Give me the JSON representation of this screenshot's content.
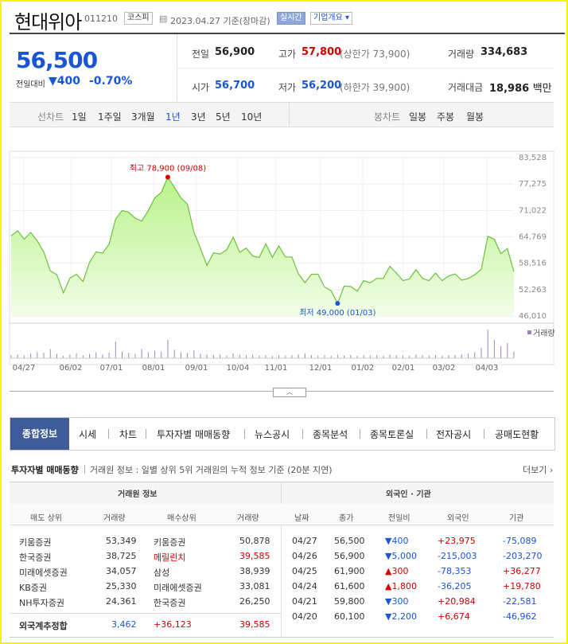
{
  "header": {
    "name": "현대위아",
    "code": "011210",
    "market_tag": "코스피",
    "date_text": "2023.04.27 기준(장마감)",
    "realtime_tag": "실시간",
    "company_btn": "기업개요 ▾"
  },
  "quote": {
    "price": "56,500",
    "change_label": "전일대비",
    "change_amount": "400",
    "change_pct": "-0.70%",
    "prev_label": "전일",
    "prev_val": "56,900",
    "high_label": "고가",
    "high_val": "57,800",
    "upper_label": "(상한가 73,900)",
    "volume_label": "거래량",
    "volume_val": "334,683",
    "open_label": "시가",
    "open_val": "56,700",
    "low_label": "저가",
    "low_val": "56,200",
    "lower_label": "(하한가 39,900)",
    "amount_label": "거래대금",
    "amount_val": "18,986",
    "amount_unit": "백만"
  },
  "chart_tabs": {
    "line_label": "선차트",
    "periods": [
      "1일",
      "1주일",
      "3개월",
      "1년",
      "3년",
      "5년",
      "10년"
    ],
    "candle_label": "봉차트",
    "candles": [
      "일봉",
      "주봉",
      "월봉"
    ]
  },
  "chart_data": {
    "type": "area",
    "ytick_labels": [
      "83,528",
      "77,275",
      "71,022",
      "64,769",
      "58,516",
      "52,263",
      "46,010"
    ],
    "ylim": [
      46010,
      83528
    ],
    "xtick_labels": [
      "04/27",
      "06/02",
      "07/01",
      "08/01",
      "09/01",
      "10/04",
      "11/01",
      "12/01",
      "01/02",
      "02/01",
      "03/02",
      "04/03"
    ],
    "high_label": "최고 78,900 (09/08)",
    "low_label": "최저 49,000 (01/03)",
    "volume_label": "거래량",
    "series": [
      65000,
      66200,
      64200,
      65800,
      63800,
      61200,
      56700,
      55800,
      51500,
      55000,
      55900,
      54200,
      58700,
      61200,
      60900,
      63000,
      69000,
      71000,
      70600,
      69200,
      68500,
      71000,
      74000,
      75300,
      78900,
      76500,
      74000,
      72500,
      65900,
      62000,
      58000,
      61000,
      60700,
      61700,
      64700,
      61100,
      62100,
      60200,
      59900,
      63100,
      59900,
      62600,
      60000,
      60000,
      56000,
      53900,
      55900,
      55900,
      52900,
      52000,
      49000,
      53100,
      53000,
      51900,
      54400,
      53900,
      54900,
      54900,
      57800,
      56200,
      54400,
      54800,
      57000,
      54900,
      54400,
      56200,
      54400,
      55500,
      56000,
      54500,
      54900,
      55800,
      57100,
      64900,
      64200,
      60800,
      62000,
      56500
    ],
    "volume": [
      0.1,
      0.12,
      0.09,
      0.15,
      0.2,
      0.18,
      0.3,
      0.14,
      0.08,
      0.12,
      0.16,
      0.1,
      0.14,
      0.2,
      0.12,
      0.18,
      0.55,
      0.22,
      0.18,
      0.14,
      0.3,
      0.2,
      0.25,
      0.22,
      0.6,
      0.28,
      0.2,
      0.18,
      0.26,
      0.14,
      0.12,
      0.1,
      0.12,
      0.09,
      0.16,
      0.12,
      0.1,
      0.12,
      0.09,
      0.1,
      0.08,
      0.1,
      0.09,
      0.1,
      0.12,
      0.15,
      0.1,
      0.09,
      0.1,
      0.08,
      0.12,
      0.09,
      0.1,
      0.08,
      0.1,
      0.09,
      0.1,
      0.08,
      0.12,
      0.1,
      0.09,
      0.08,
      0.12,
      0.1,
      0.09,
      0.1,
      0.08,
      0.09,
      0.1,
      0.12,
      0.15,
      0.2,
      0.35,
      0.95,
      0.6,
      0.4,
      0.5,
      0.22
    ]
  },
  "main_tabs": [
    "종합정보",
    "시세",
    "차트",
    "투자자별 매매동향",
    "뉴스공시",
    "종목분석",
    "종목토론실",
    "전자공시",
    "공매도현황"
  ],
  "investor": {
    "title": "투자자별 매매동향",
    "subtitle": "거래원 정보 : 일별 상위 5위 거래원의 누적 정보 기준 (20분 지연)",
    "more": "더보기 ›",
    "broker_header": "거래원 정보",
    "foreign_header": "외국인 · 기관",
    "broker_cols": [
      "매도 상위",
      "거래량",
      "매수상위",
      "거래량"
    ],
    "foreign_cols": [
      "날짜",
      "종가",
      "전일비",
      "외국인",
      "기관"
    ],
    "brokers": [
      {
        "sell": "키움증권",
        "sell_vol": "53,349",
        "buy": "키움증권",
        "buy_vol": "50,878",
        "buy_red": false
      },
      {
        "sell": "한국증권",
        "sell_vol": "38,725",
        "buy": "메릴린치",
        "buy_vol": "39,585",
        "buy_red": true
      },
      {
        "sell": "미래에셋증권",
        "sell_vol": "34,057",
        "buy": "삼성",
        "buy_vol": "38,939",
        "buy_red": false
      },
      {
        "sell": "KB증권",
        "sell_vol": "25,330",
        "buy": "미래에셋증권",
        "buy_vol": "33,081",
        "buy_red": false
      },
      {
        "sell": "NH투자증권",
        "sell_vol": "24,361",
        "buy": "한국증권",
        "buy_vol": "26,250",
        "buy_red": false
      }
    ],
    "foreign_total": {
      "label": "외국계추정합",
      "sell_vol": "3,462",
      "diff": "+36,123",
      "buy_vol": "39,585"
    },
    "foreign": [
      {
        "date": "04/27",
        "close": "56,500",
        "diff": "▼400",
        "up": false,
        "foreign": "+23,975",
        "inst": "-75,089"
      },
      {
        "date": "04/26",
        "close": "56,900",
        "diff": "▼5,000",
        "up": false,
        "foreign": "-215,003",
        "inst": "-203,270"
      },
      {
        "date": "04/25",
        "close": "61,900",
        "diff": "▲300",
        "up": true,
        "foreign": "-78,353",
        "inst": "+36,277"
      },
      {
        "date": "04/24",
        "close": "61,600",
        "diff": "▲1,800",
        "up": true,
        "foreign": "-36,205",
        "inst": "+19,780"
      },
      {
        "date": "04/21",
        "close": "59,800",
        "diff": "▼300",
        "up": false,
        "foreign": "+20,984",
        "inst": "-22,581"
      },
      {
        "date": "04/20",
        "close": "60,100",
        "diff": "▼2,200",
        "up": false,
        "foreign": "+6,674",
        "inst": "-46,962"
      }
    ]
  }
}
